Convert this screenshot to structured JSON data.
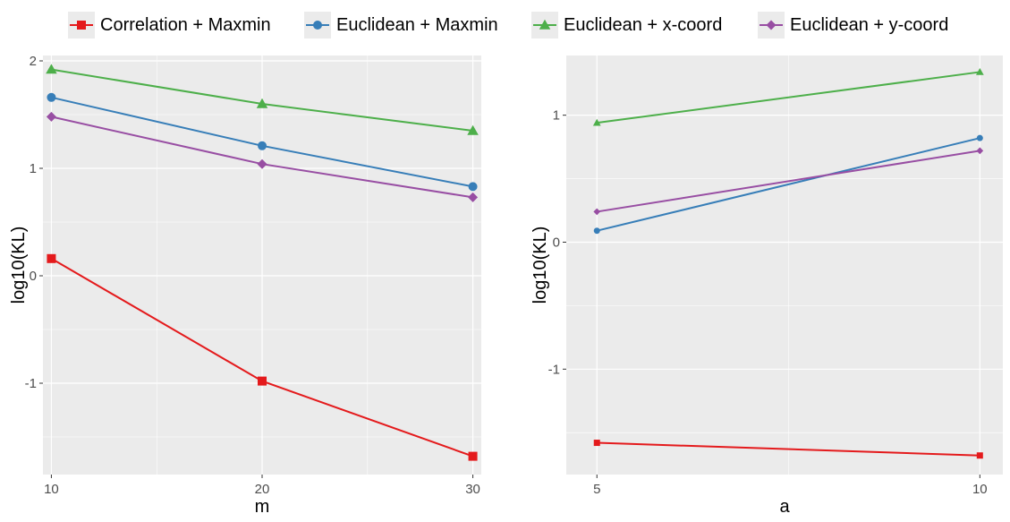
{
  "colors": {
    "panel_bg": "#ebebeb",
    "grid": "#ffffff",
    "tick_text": "#4d4d4d"
  },
  "legend": [
    {
      "name": "Correlation + Maxmin",
      "color": "#e41a1c",
      "shape": "square-icon"
    },
    {
      "name": "Euclidean + Maxmin",
      "color": "#377eb8",
      "shape": "circle-icon"
    },
    {
      "name": "Euclidean + x-coord",
      "color": "#4daf4a",
      "shape": "triangle-icon"
    },
    {
      "name": "Euclidean + y-coord",
      "color": "#984ea3",
      "shape": "diamond-icon"
    }
  ],
  "chart_data": [
    {
      "type": "line",
      "xlabel": "m",
      "ylabel": "log10(KL)",
      "x": [
        10,
        20,
        30
      ],
      "xlim": [
        9.6,
        30.4
      ],
      "ylim": [
        -1.85,
        2.05
      ],
      "xticks": [
        10,
        20,
        30
      ],
      "yticks": [
        -1,
        0,
        1,
        2
      ],
      "grid": true,
      "legend_position": "top",
      "series": [
        {
          "name": "Correlation + Maxmin",
          "values": [
            0.16,
            -0.98,
            -1.68
          ]
        },
        {
          "name": "Euclidean + Maxmin",
          "values": [
            1.66,
            1.21,
            0.83
          ]
        },
        {
          "name": "Euclidean + x-coord",
          "values": [
            1.92,
            1.6,
            1.35
          ]
        },
        {
          "name": "Euclidean + y-coord",
          "values": [
            1.48,
            1.04,
            0.73
          ]
        }
      ]
    },
    {
      "type": "line",
      "xlabel": "a",
      "ylabel": "log10(KL)",
      "x": [
        5,
        10
      ],
      "xlim": [
        4.6,
        10.3
      ],
      "ylim": [
        -1.83,
        1.47
      ],
      "xticks": [
        5,
        10
      ],
      "yticks": [
        -1,
        0,
        1
      ],
      "grid": true,
      "legend_position": "top",
      "series": [
        {
          "name": "Correlation + Maxmin",
          "values": [
            -1.58,
            -1.68
          ]
        },
        {
          "name": "Euclidean + Maxmin",
          "values": [
            0.09,
            0.82
          ]
        },
        {
          "name": "Euclidean + x-coord",
          "values": [
            0.94,
            1.34
          ]
        },
        {
          "name": "Euclidean + y-coord",
          "values": [
            0.24,
            0.72
          ]
        }
      ]
    }
  ]
}
